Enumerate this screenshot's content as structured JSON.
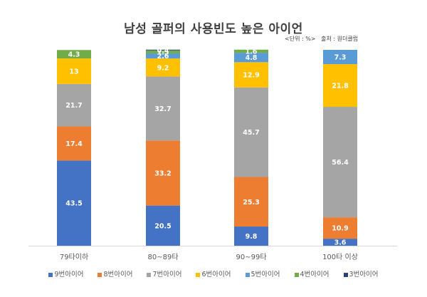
{
  "chart_data": {
    "type": "bar",
    "stacked": true,
    "title": "남성 골퍼의 사용빈도 높은 아이언",
    "unit_note": "<단위 : %>",
    "source_note": "출처 : 원더클럽",
    "categories": [
      "79타이하",
      "80~89타",
      "90~99타",
      "100타 이상"
    ],
    "series": [
      {
        "name": "9번아이어",
        "color": "#4472C4",
        "values": [
          43.5,
          20.5,
          9.8,
          3.6
        ]
      },
      {
        "name": "8번아이어",
        "color": "#ED7D31",
        "values": [
          17.4,
          33.2,
          25.3,
          10.9
        ]
      },
      {
        "name": "7번아이어",
        "color": "#A5A5A5",
        "values": [
          21.7,
          32.7,
          45.7,
          56.4
        ]
      },
      {
        "name": "6번아이어",
        "color": "#FFC000",
        "values": [
          13,
          9.2,
          12.9,
          21.8
        ]
      },
      {
        "name": "5번아이어",
        "color": "#5B9BD5",
        "values": [
          null,
          2.6,
          4.8,
          7.3
        ]
      },
      {
        "name": "4번아이어",
        "color": "#70AD47",
        "values": [
          4.3,
          1.5,
          1.6,
          null
        ]
      },
      {
        "name": "3번아이어",
        "color": "#264478",
        "values": [
          null,
          0.4,
          null,
          null
        ]
      }
    ],
    "ylim": [
      0,
      100
    ],
    "grid": false,
    "legend": "bottom",
    "xlabel": "",
    "ylabel": ""
  }
}
